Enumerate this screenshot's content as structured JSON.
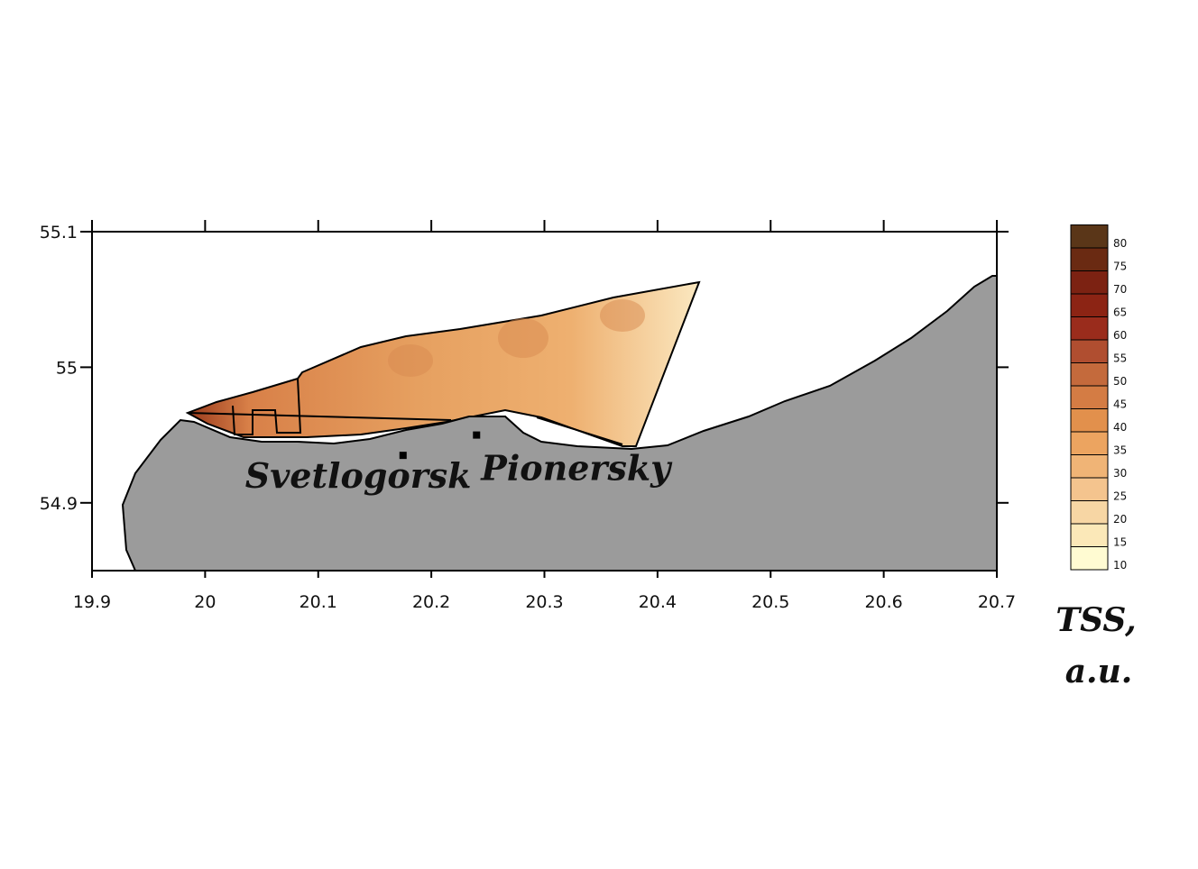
{
  "map": {
    "xaxis": {
      "lim": [
        19.9,
        20.7
      ],
      "ticks": [
        19.9,
        20,
        20.1,
        20.2,
        20.3,
        20.4,
        20.5,
        20.6,
        20.7
      ]
    },
    "yaxis": {
      "lim": [
        54.85,
        55.1
      ],
      "ticks": [
        54.9,
        55,
        55.1
      ]
    },
    "places": [
      {
        "label": "Svetlogorsk",
        "lon": 20.175,
        "lat": 54.935
      },
      {
        "label": "Pionersky",
        "lon": 20.24,
        "lat": 54.95
      }
    ],
    "colorbar": {
      "levels": [
        10,
        15,
        20,
        25,
        30,
        35,
        40,
        45,
        50,
        55,
        60,
        65,
        70,
        75,
        80
      ],
      "colors": [
        "#fffbd2",
        "#fbe8b8",
        "#f7d6a4",
        "#f4c48e",
        "#f0b476",
        "#eca460",
        "#e2904c",
        "#d47c44",
        "#c46a3c",
        "#b04e30",
        "#9a2c1c",
        "#8c2414",
        "#7c2212",
        "#6a2a12",
        "#5a3618"
      ],
      "title": [
        "TSS,",
        "a.u."
      ]
    }
  }
}
